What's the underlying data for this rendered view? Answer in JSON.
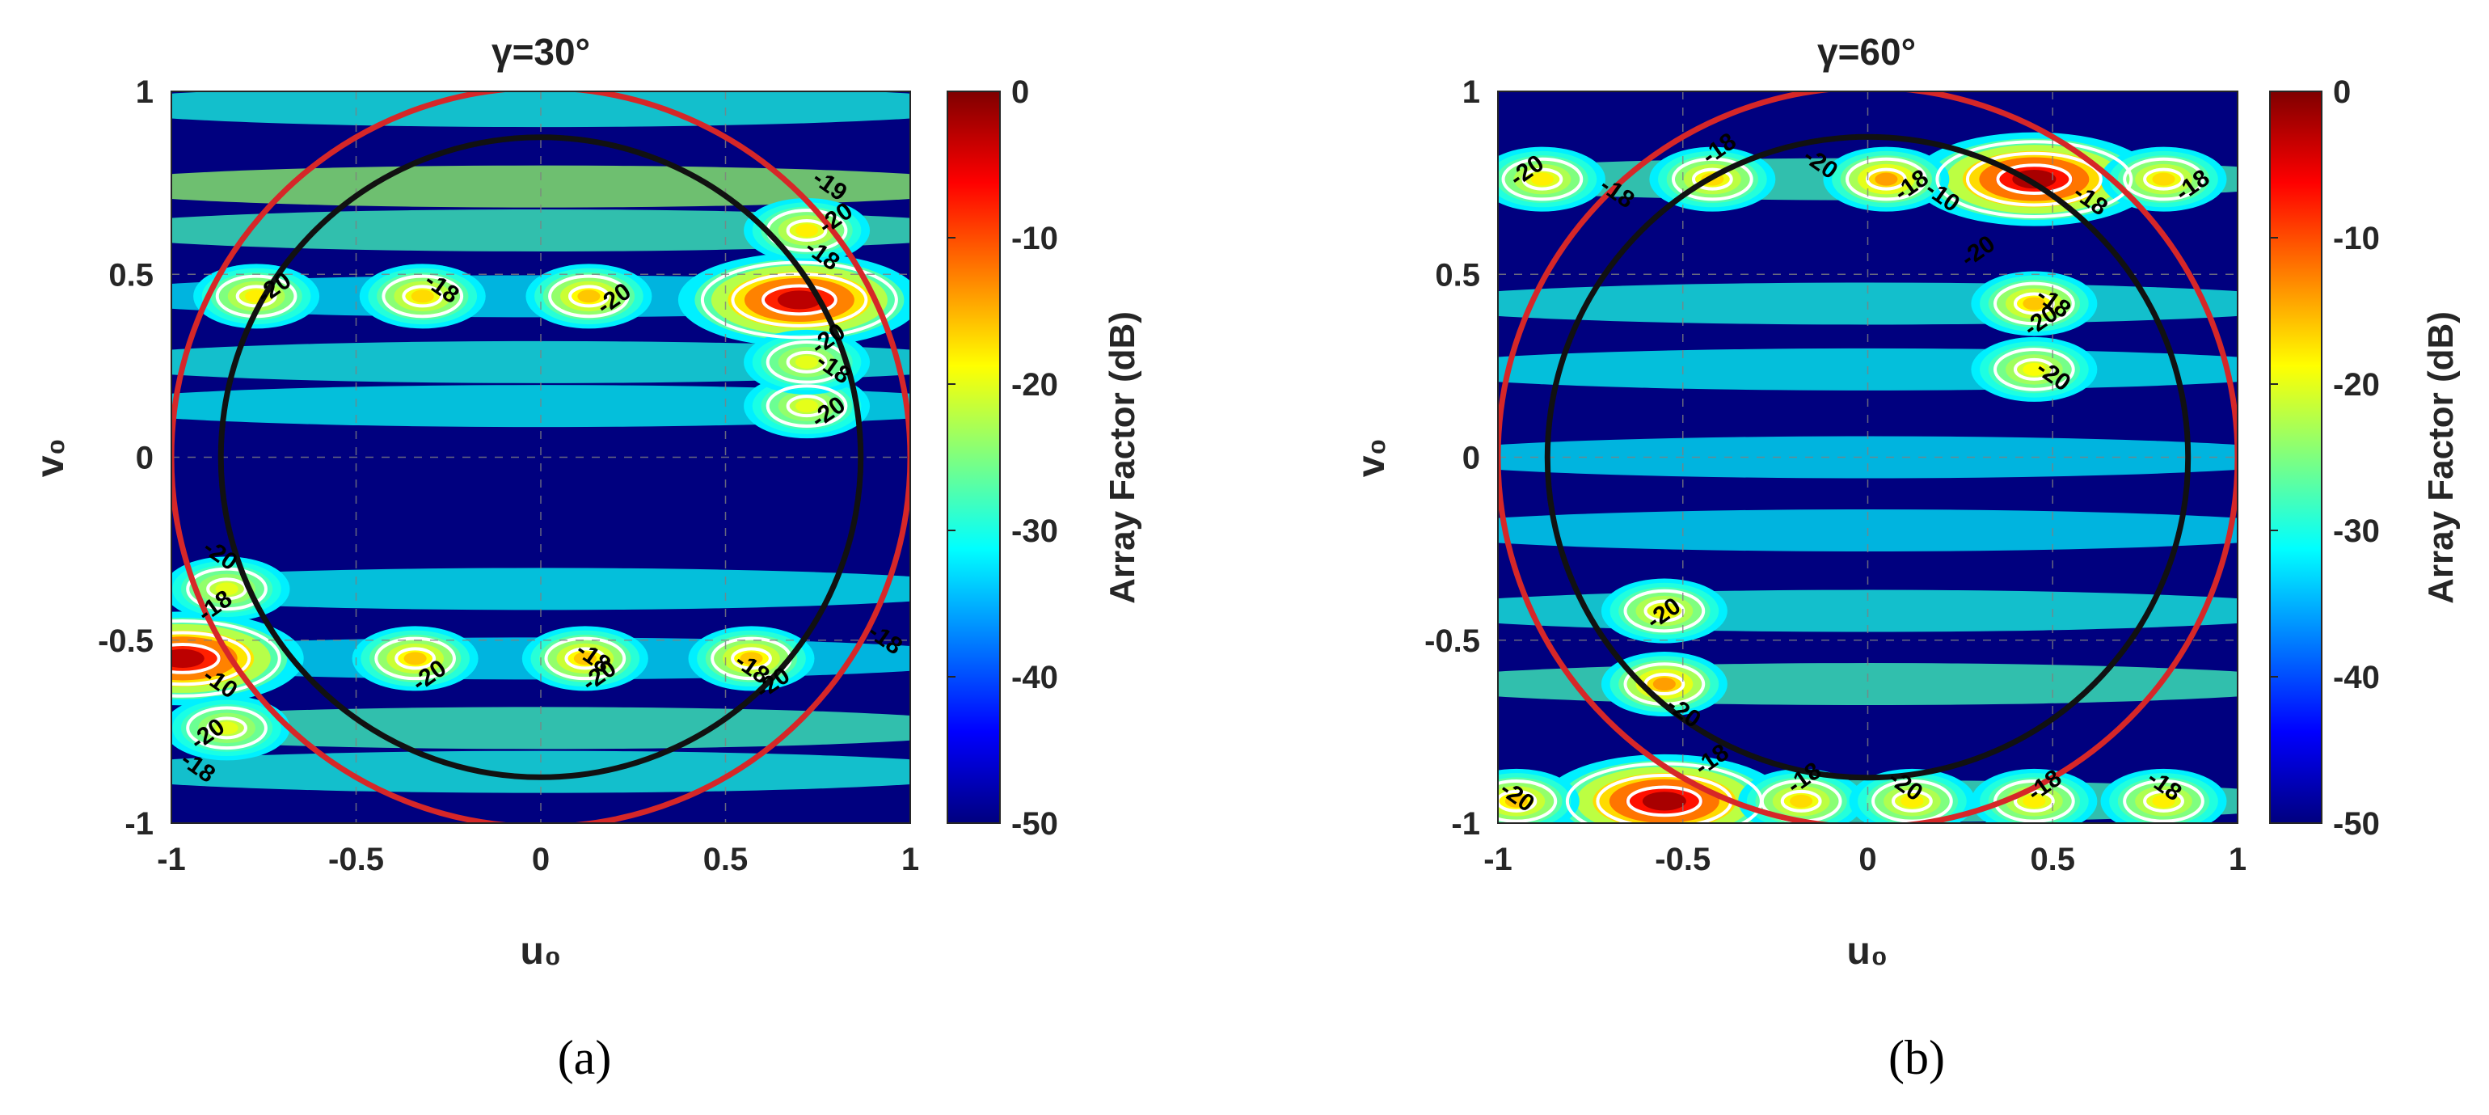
{
  "caption_a": "(a)",
  "caption_b": "(b)",
  "colors": {
    "circle_outer": "#d62728",
    "circle_inner": "#111111",
    "contour": "#ffffff",
    "colormap": [
      "#00007f",
      "#0000ff",
      "#007fff",
      "#00ffff",
      "#7fff7f",
      "#ffff00",
      "#ff7f00",
      "#ff0000",
      "#7f0000"
    ]
  },
  "chart_data": [
    {
      "type": "heatmap",
      "title": "γ=30°",
      "xlabel": "u₀",
      "ylabel": "v₀",
      "xlim": [
        -1,
        1
      ],
      "ylim": [
        -1,
        1
      ],
      "xticks": [
        "-1",
        "-0.5",
        "0",
        "0.5",
        "1"
      ],
      "yticks": [
        "-1",
        "-0.5",
        "0",
        "0.5",
        "1"
      ],
      "colorbar": {
        "label": "Array Factor (dB)",
        "min": -50,
        "max": 0,
        "ticks": [
          "0",
          "-10",
          "-20",
          "-30",
          "-40",
          "-50"
        ]
      },
      "circles": [
        {
          "radius": 1.0,
          "color": "red"
        },
        {
          "radius": 0.866,
          "color": "black"
        }
      ],
      "grid": "dashed",
      "lobes": [
        {
          "u": 0.7,
          "v": 0.43,
          "peak_db": -3
        },
        {
          "u": -0.97,
          "v": -0.55,
          "peak_db": -3
        },
        {
          "u": 0.13,
          "v": 0.44,
          "peak_db": -16
        },
        {
          "u": -0.32,
          "v": 0.44,
          "peak_db": -17
        },
        {
          "u": -0.77,
          "v": 0.44,
          "peak_db": -18
        },
        {
          "u": -0.34,
          "v": -0.55,
          "peak_db": -16
        },
        {
          "u": 0.12,
          "v": -0.55,
          "peak_db": -16
        },
        {
          "u": 0.57,
          "v": -0.55,
          "peak_db": -16
        },
        {
          "u": -0.85,
          "v": -0.36,
          "peak_db": -20
        },
        {
          "u": -0.85,
          "v": -0.74,
          "peak_db": -20
        },
        {
          "u": 0.72,
          "v": 0.62,
          "peak_db": -18
        },
        {
          "u": 0.72,
          "v": 0.14,
          "peak_db": -20
        },
        {
          "u": 0.72,
          "v": 0.26,
          "peak_db": -20
        }
      ],
      "contour_labels": [
        {
          "text": "-20",
          "u": -0.72,
          "v": 0.46
        },
        {
          "text": "-18",
          "u": -0.27,
          "v": 0.46
        },
        {
          "text": "-20",
          "u": 0.2,
          "v": 0.43
        },
        {
          "text": "-19",
          "u": 0.78,
          "v": 0.74
        },
        {
          "text": "-20",
          "u": 0.8,
          "v": 0.65
        },
        {
          "text": "-18",
          "u": 0.76,
          "v": 0.55
        },
        {
          "text": "-20",
          "u": 0.78,
          "v": 0.32
        },
        {
          "text": "-18",
          "u": 0.79,
          "v": 0.24
        },
        {
          "text": "-20",
          "u": 0.78,
          "v": 0.12
        },
        {
          "text": "-20",
          "u": -0.87,
          "v": -0.27
        },
        {
          "text": "-18",
          "u": -0.88,
          "v": -0.41
        },
        {
          "text": "-10",
          "u": -0.87,
          "v": -0.62
        },
        {
          "text": "-20",
          "u": -0.9,
          "v": -0.76
        },
        {
          "text": "-18",
          "u": -0.93,
          "v": -0.85
        },
        {
          "text": "-20",
          "u": -0.3,
          "v": -0.6
        },
        {
          "text": "-18",
          "u": 0.14,
          "v": -0.55
        },
        {
          "text": "-20",
          "u": 0.16,
          "v": -0.6
        },
        {
          "text": "-18",
          "u": 0.57,
          "v": -0.58
        },
        {
          "text": "-20",
          "u": 0.63,
          "v": -0.62
        },
        {
          "text": "-18",
          "u": 0.93,
          "v": -0.5
        }
      ]
    },
    {
      "type": "heatmap",
      "title": "γ=60°",
      "xlabel": "u₀",
      "ylabel": "v₀",
      "xlim": [
        -1,
        1
      ],
      "ylim": [
        -1,
        1
      ],
      "xticks": [
        "-1",
        "-0.5",
        "0",
        "0.5",
        "1"
      ],
      "yticks": [
        "-1",
        "-0.5",
        "0",
        "0.5",
        "1"
      ],
      "colorbar": {
        "label": "Array Factor (dB)",
        "min": -50,
        "max": 0,
        "ticks": [
          "0",
          "-10",
          "-20",
          "-30",
          "-40",
          "-50"
        ]
      },
      "circles": [
        {
          "radius": 1.0,
          "color": "red"
        },
        {
          "radius": 0.866,
          "color": "black"
        }
      ],
      "grid": "dashed",
      "lobes": [
        {
          "u": 0.45,
          "v": 0.76,
          "peak_db": -2
        },
        {
          "u": -0.55,
          "v": -0.94,
          "peak_db": -2
        },
        {
          "u": 0.05,
          "v": 0.76,
          "peak_db": -14
        },
        {
          "u": -0.42,
          "v": 0.76,
          "peak_db": -17
        },
        {
          "u": -0.88,
          "v": 0.76,
          "peak_db": -18
        },
        {
          "u": 0.8,
          "v": 0.76,
          "peak_db": -17
        },
        {
          "u": 0.45,
          "v": 0.42,
          "peak_db": -16
        },
        {
          "u": 0.45,
          "v": 0.24,
          "peak_db": -19
        },
        {
          "u": -0.55,
          "v": -0.62,
          "peak_db": -14
        },
        {
          "u": -0.55,
          "v": -0.42,
          "peak_db": -18
        },
        {
          "u": -0.95,
          "v": -0.94,
          "peak_db": -16
        },
        {
          "u": -0.18,
          "v": -0.94,
          "peak_db": -17
        },
        {
          "u": 0.12,
          "v": -0.94,
          "peak_db": -18
        },
        {
          "u": 0.45,
          "v": -0.94,
          "peak_db": -18
        },
        {
          "u": 0.8,
          "v": -0.94,
          "peak_db": -18
        }
      ],
      "contour_labels": [
        {
          "text": "-20",
          "u": -0.92,
          "v": 0.78
        },
        {
          "text": "-18",
          "u": -0.68,
          "v": 0.72
        },
        {
          "text": "-18",
          "u": -0.4,
          "v": 0.84
        },
        {
          "text": "-20",
          "u": -0.13,
          "v": 0.8
        },
        {
          "text": "-18",
          "u": 0.12,
          "v": 0.74
        },
        {
          "text": "-10",
          "u": 0.2,
          "v": 0.71
        },
        {
          "text": "-20",
          "u": 0.3,
          "v": 0.56
        },
        {
          "text": "-18",
          "u": 0.6,
          "v": 0.7
        },
        {
          "text": "-18",
          "u": 0.88,
          "v": 0.74
        },
        {
          "text": "-18",
          "u": 0.5,
          "v": 0.42
        },
        {
          "text": "-20",
          "u": 0.47,
          "v": 0.37
        },
        {
          "text": "-20",
          "u": 0.5,
          "v": 0.22
        },
        {
          "text": "-20",
          "u": -0.55,
          "v": -0.43
        },
        {
          "text": "-20",
          "u": -0.5,
          "v": -0.7
        },
        {
          "text": "-18",
          "u": -0.42,
          "v": -0.83
        },
        {
          "text": "-20",
          "u": -0.95,
          "v": -0.93
        },
        {
          "text": "-18",
          "u": -0.17,
          "v": -0.88
        },
        {
          "text": "-20",
          "u": 0.1,
          "v": -0.9
        },
        {
          "text": "-18",
          "u": 0.48,
          "v": -0.9
        },
        {
          "text": "-18",
          "u": 0.8,
          "v": -0.9
        }
      ]
    }
  ]
}
